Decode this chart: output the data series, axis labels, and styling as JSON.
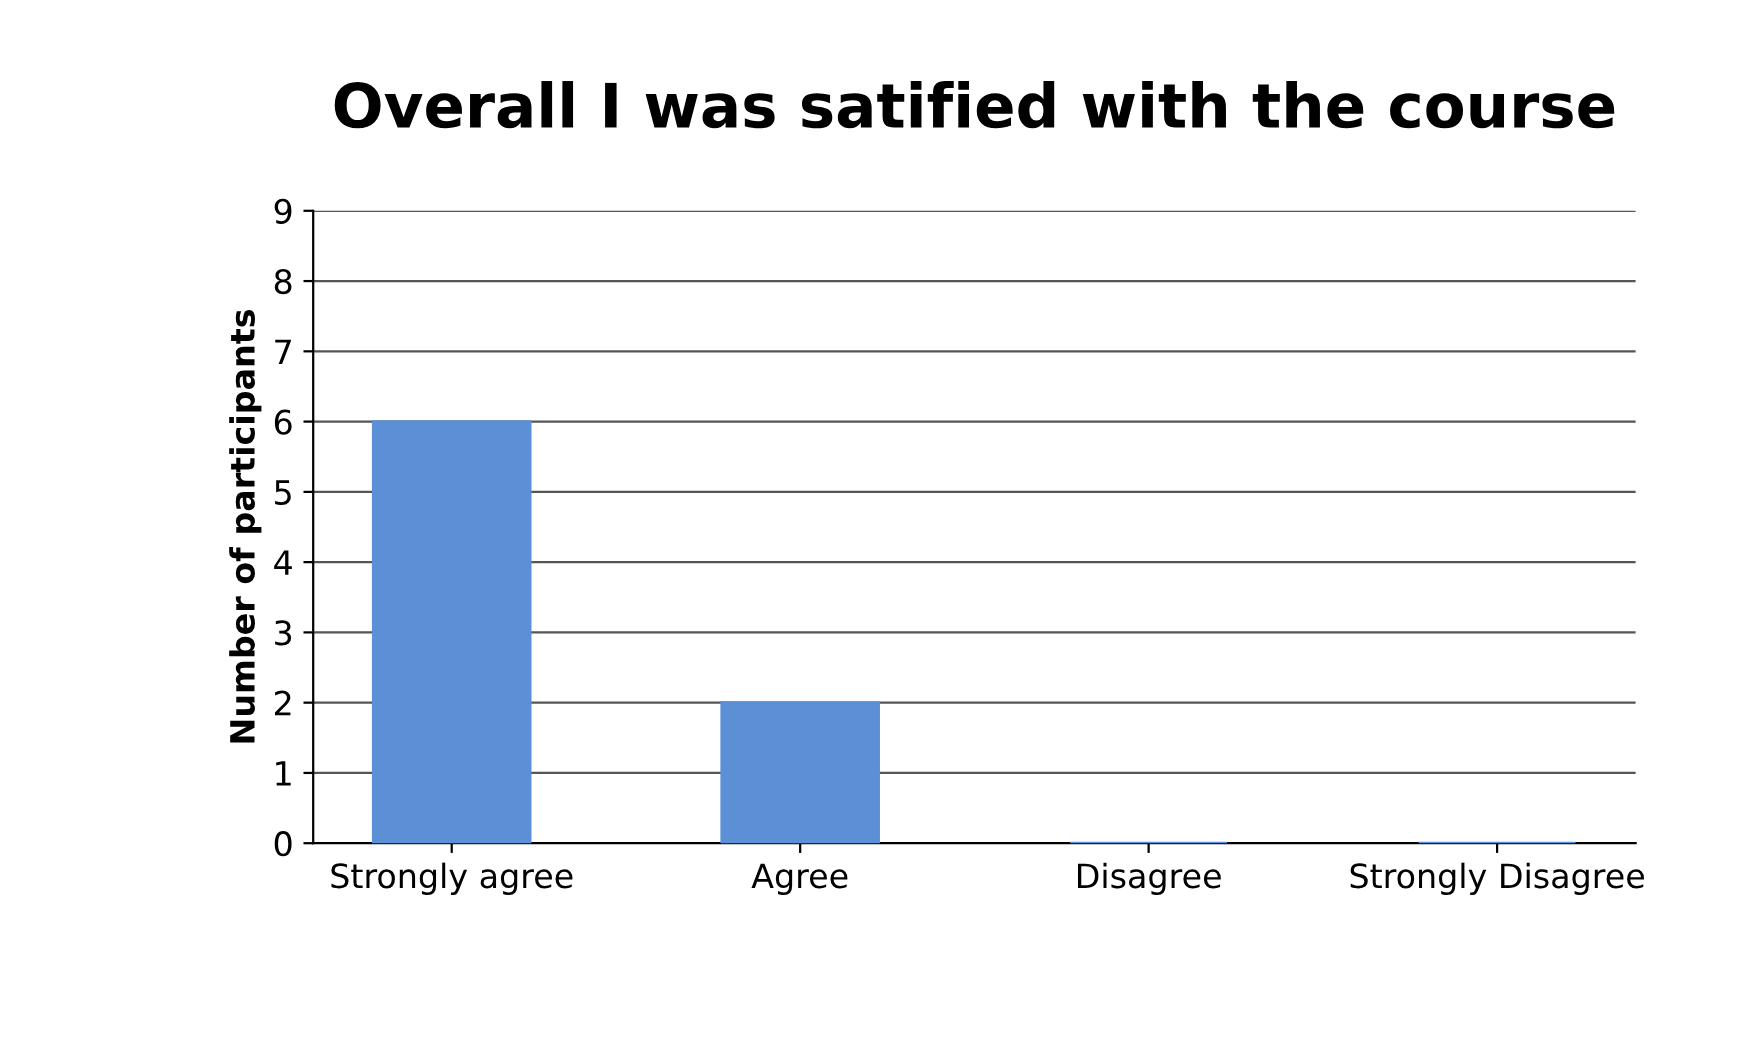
{
  "chart_data": {
    "type": "bar",
    "title": "Overall I was satified with the course",
    "ylabel": "Number of participants",
    "categories": [
      "Strongly agree",
      "Agree",
      "Disagree",
      "Strongly Disagree"
    ],
    "values": [
      6,
      2,
      0,
      0
    ],
    "color": "#5b8fd6",
    "ylim": [
      0,
      9
    ],
    "yticks": [
      0,
      1,
      2,
      3,
      4,
      5,
      6,
      7,
      8,
      9
    ],
    "grid": "y"
  }
}
